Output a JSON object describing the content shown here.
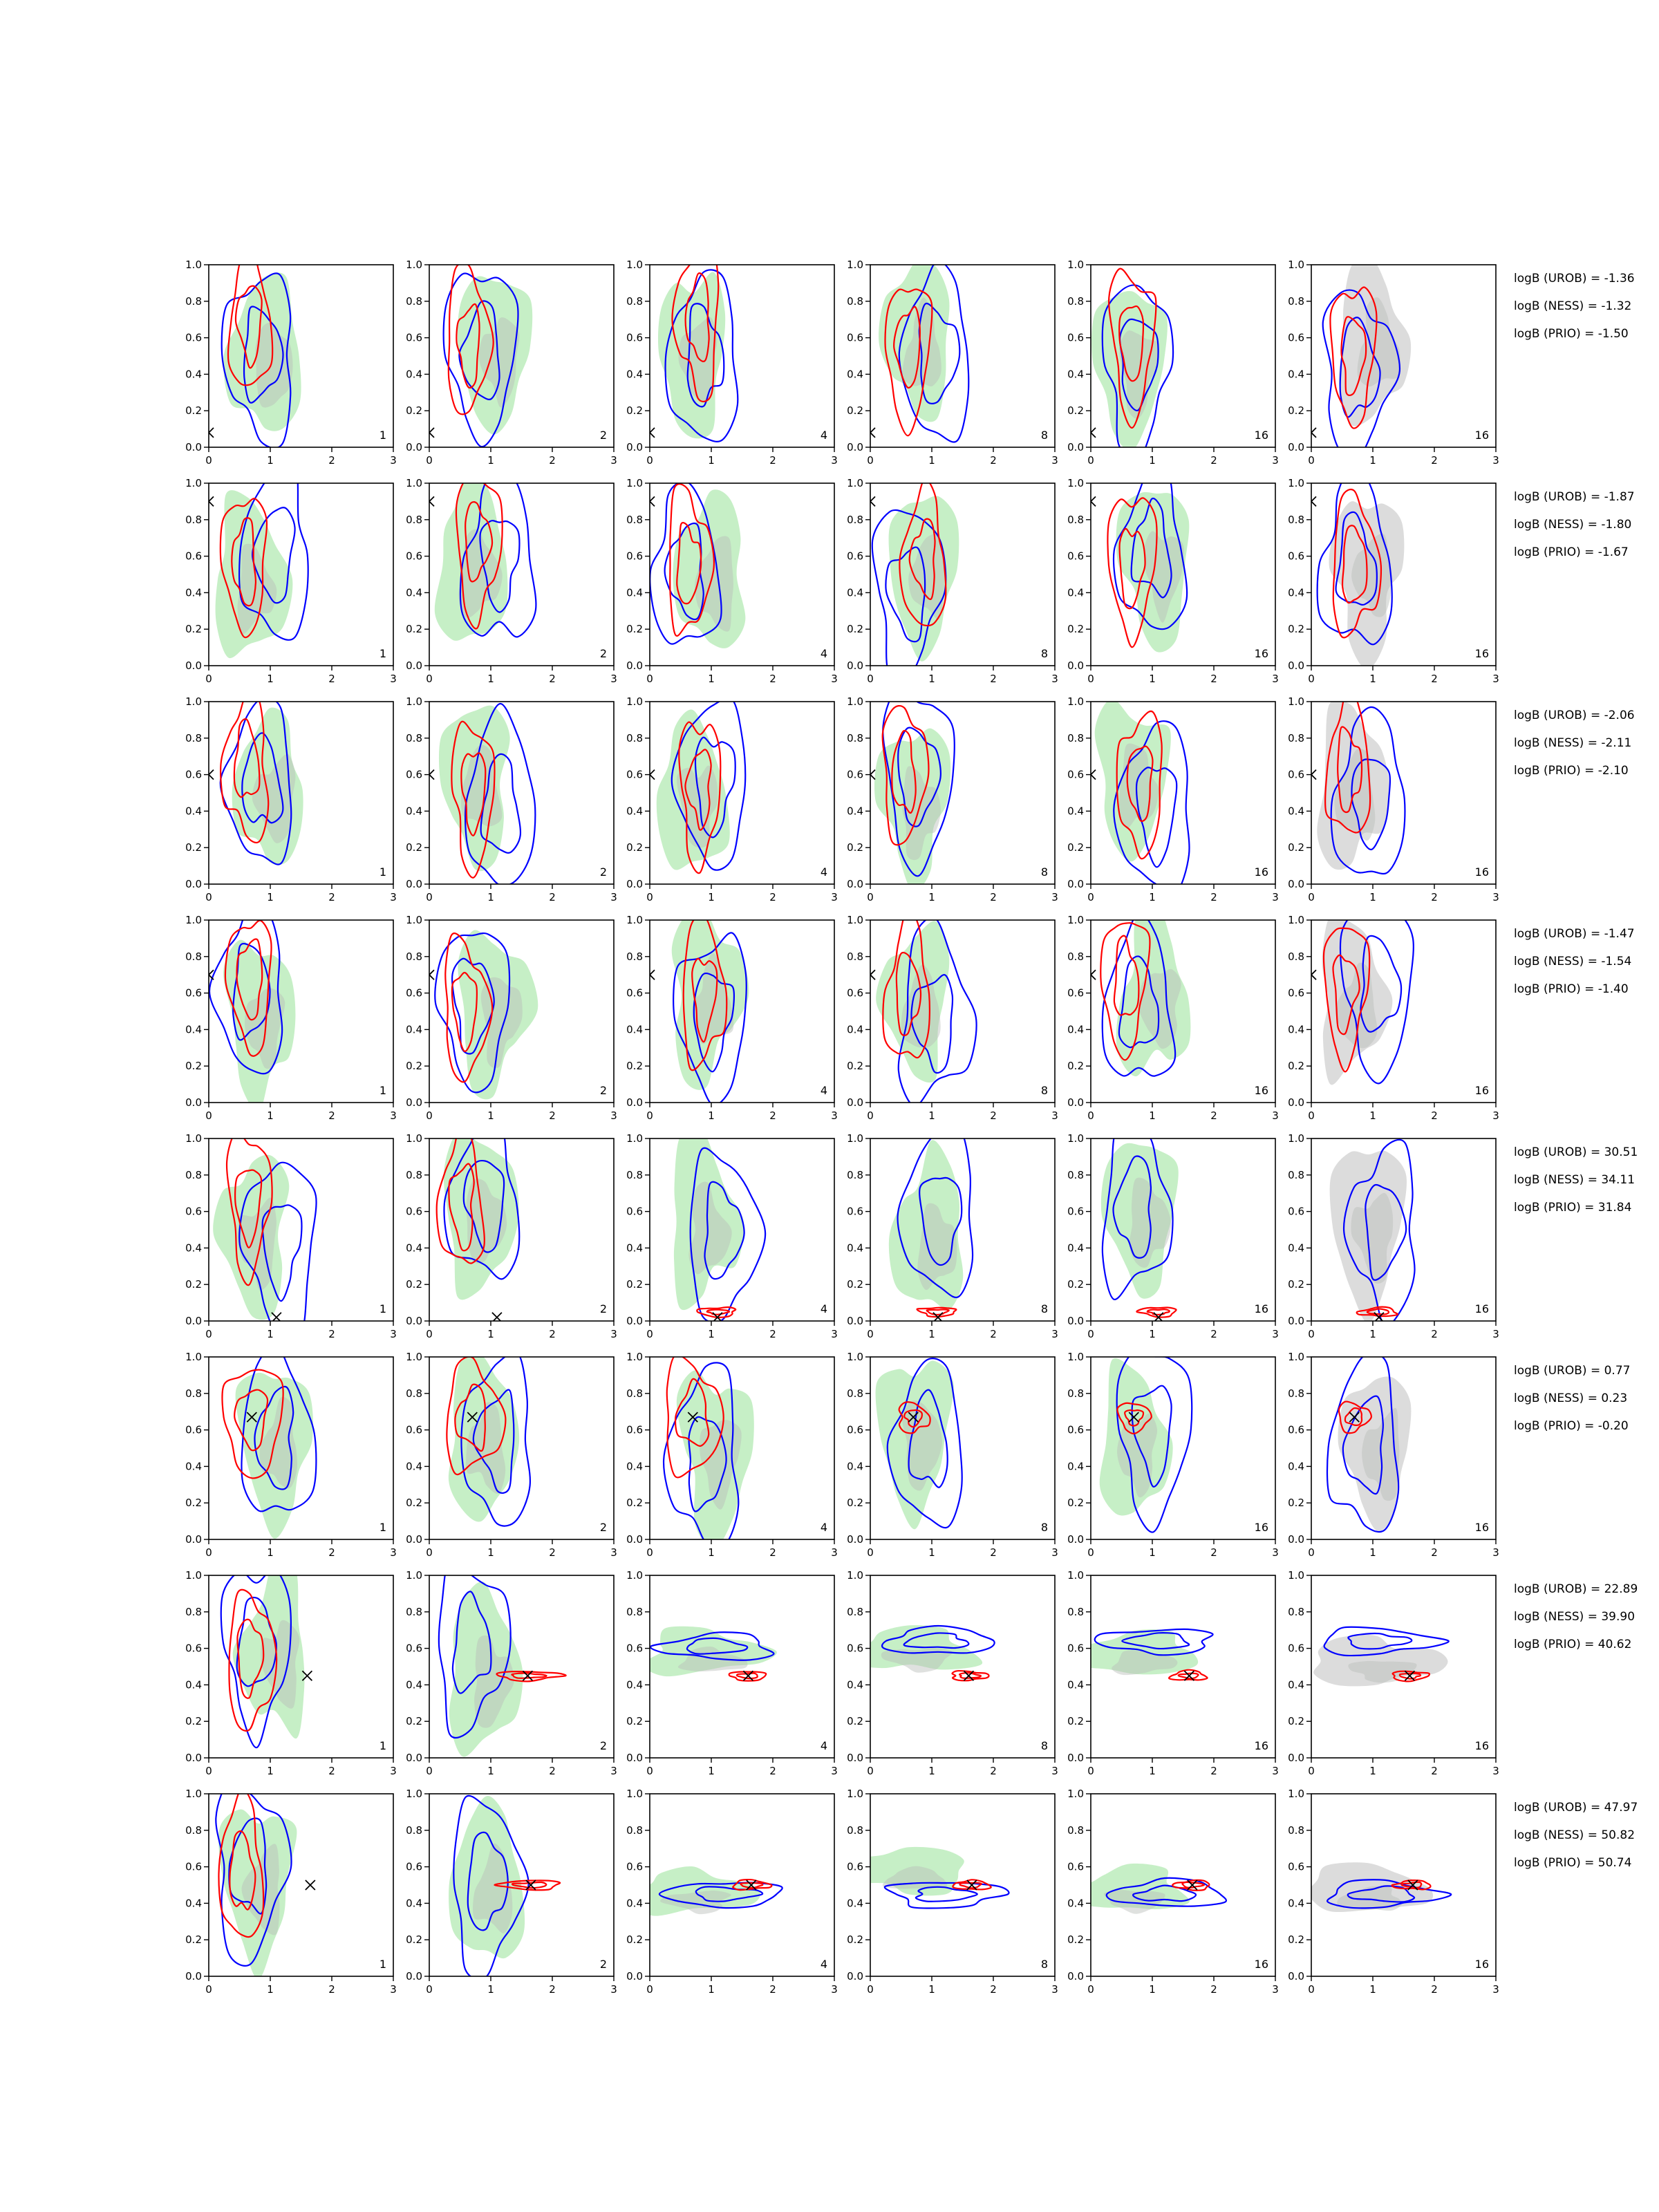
{
  "chart_data": {
    "type": "contour-grid",
    "title": "",
    "x_axis": {
      "range": [
        0,
        3
      ],
      "ticks": [
        "0",
        "1",
        "2",
        "3"
      ]
    },
    "y_axis": {
      "range": [
        0,
        1
      ],
      "ticks": [
        "0.0",
        "0.2",
        "0.4",
        "0.6",
        "0.8",
        "1.0"
      ]
    },
    "colors": {
      "series_a": "#ff0000",
      "series_b": "#0000ff",
      "fill_main": "#c6efc6",
      "fill_dark": "#b8bcb8",
      "fill_grey": "#dcdcdc",
      "marker": "#000000"
    },
    "column_labels": [
      "1",
      "2",
      "4",
      "8",
      "16",
      "16"
    ],
    "rows": [
      {
        "logB": {
          "UROB": "logB (UROB) = -1.36",
          "NESS": "logB (NESS) = -1.32",
          "PRIO": "logB (PRIO) = -1.50"
        },
        "truth": [
          0.0,
          0.08
        ]
      },
      {
        "logB": {
          "UROB": "logB (UROB) = -1.87",
          "NESS": "logB (NESS) = -1.80",
          "PRIO": "logB (PRIO) = -1.67"
        },
        "truth": [
          0.0,
          0.9
        ]
      },
      {
        "logB": {
          "UROB": "logB (UROB) = -2.06",
          "NESS": "logB (NESS) = -2.11",
          "PRIO": "logB (PRIO) = -2.10"
        },
        "truth": [
          0.0,
          0.6
        ]
      },
      {
        "logB": {
          "UROB": "logB (UROB) = -1.47",
          "NESS": "logB (NESS) = -1.54",
          "PRIO": "logB (PRIO) = -1.40"
        },
        "truth": [
          0.0,
          0.7
        ]
      },
      {
        "logB": {
          "UROB": "logB (UROB) = 30.51",
          "NESS": "logB (NESS) = 34.11",
          "PRIO": "logB (PRIO) = 31.84"
        },
        "truth": [
          1.1,
          0.02
        ]
      },
      {
        "logB": {
          "UROB": "logB (UROB) = 0.77",
          "NESS": "logB (NESS) = 0.23",
          "PRIO": "logB (PRIO) = -0.20"
        },
        "truth": [
          0.7,
          0.67
        ]
      },
      {
        "logB": {
          "UROB": "logB (UROB) = 22.89",
          "NESS": "logB (NESS) = 39.90",
          "PRIO": "logB (PRIO) = 40.62"
        },
        "truth": [
          1.6,
          0.45
        ]
      },
      {
        "logB": {
          "UROB": "logB (UROB) = 47.97",
          "NESS": "logB (NESS) = 50.82",
          "PRIO": "logB (PRIO) = 50.74"
        },
        "truth": [
          1.65,
          0.5
        ]
      }
    ]
  }
}
